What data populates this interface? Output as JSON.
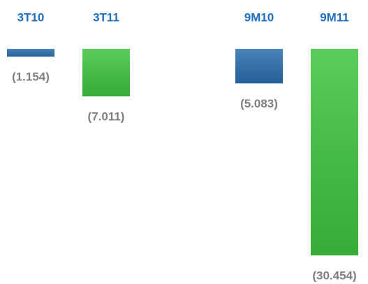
{
  "chart_data": {
    "type": "bar",
    "categories": [
      "3T10",
      "3T11",
      "9M10",
      "9M11"
    ],
    "values": [
      -1154,
      -7011,
      -5083,
      -30454
    ],
    "value_labels": [
      "(1.154)",
      "(7.011)",
      "(5.083)",
      "(30.454)"
    ],
    "colors": [
      "#2a6ead",
      "#3ec43e",
      "#2a6ead",
      "#3ec43e"
    ]
  }
}
